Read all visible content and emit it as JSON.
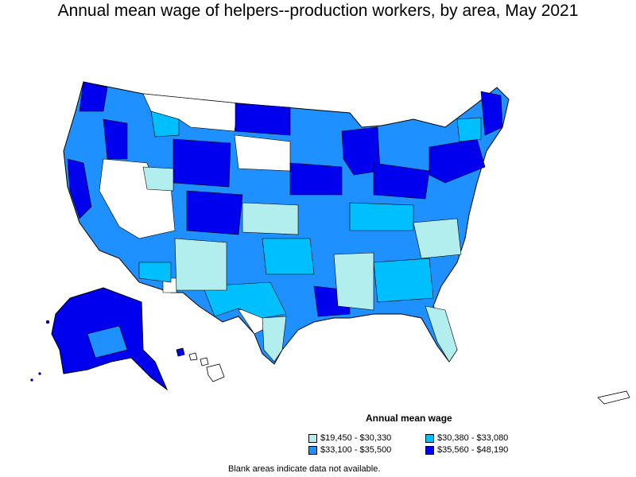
{
  "title": "Annual mean wage of helpers--production workers, by area, May 2021",
  "legend": {
    "title": "Annual mean wage",
    "items": [
      {
        "label": "$19,450 - $30,330",
        "color": "#b3eeee"
      },
      {
        "label": "$30,380 - $33,080",
        "color": "#00bfff"
      },
      {
        "label": "$33,100 - $35,500",
        "color": "#1e90ff"
      },
      {
        "label": "$35,560 - $48,190",
        "color": "#0000ee"
      }
    ]
  },
  "footnote": "Blank areas indicate data not available.",
  "colors": {
    "tier1": "#b3eeee",
    "tier2": "#00bfff",
    "tier3": "#1e90ff",
    "tier4": "#0000ee",
    "blank": "#ffffff",
    "border": "#000000"
  }
}
